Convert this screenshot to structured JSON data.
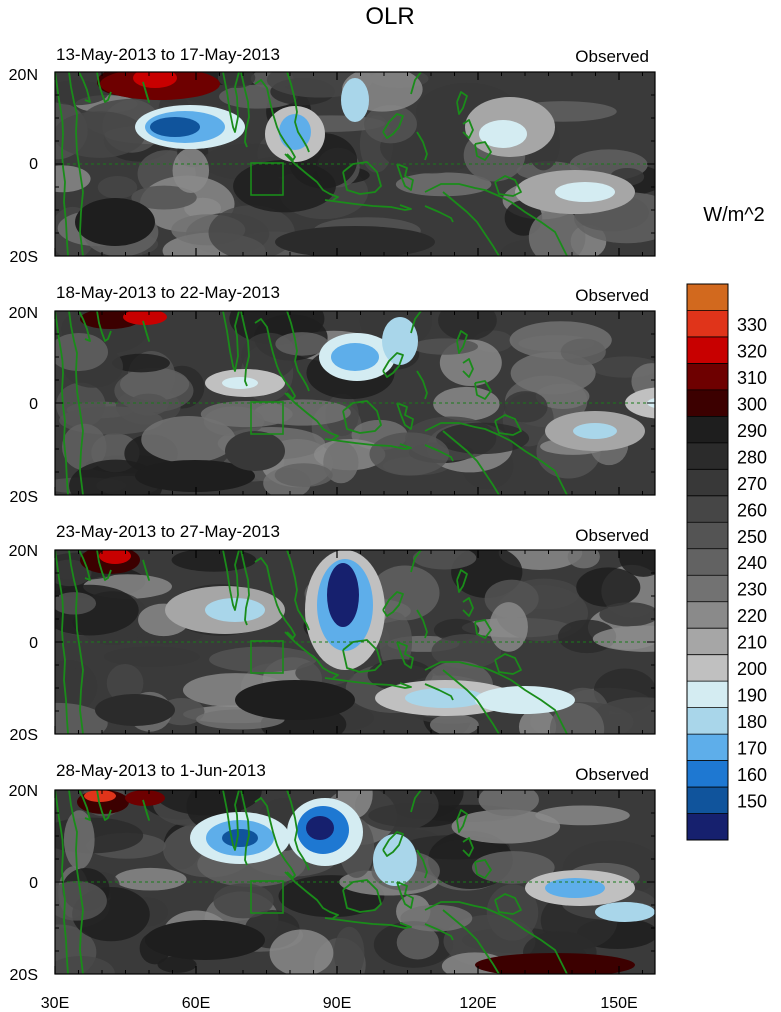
{
  "title": "OLR",
  "units": "W/m^2",
  "panels": [
    {
      "date_range": "13-May-2013 to 17-May-2013",
      "label": "Observed"
    },
    {
      "date_range": "18-May-2013 to 22-May-2013",
      "label": "Observed"
    },
    {
      "date_range": "23-May-2013 to 27-May-2013",
      "label": "Observed"
    },
    {
      "date_range": "28-May-2013 to 1-Jun-2013",
      "label": "Observed"
    }
  ],
  "lat_labels": [
    "20N",
    "0",
    "20S"
  ],
  "lon_labels": [
    "30E",
    "60E",
    "90E",
    "120E",
    "150E"
  ],
  "colorbar": {
    "levels": [
      "330",
      "320",
      "310",
      "300",
      "290",
      "280",
      "270",
      "260",
      "250",
      "240",
      "230",
      "220",
      "210",
      "200",
      "190",
      "180",
      "170",
      "160",
      "150"
    ],
    "colors": [
      "#d2691e",
      "#e0341a",
      "#c80000",
      "#6e0000",
      "#3c0000",
      "#1e1e1e",
      "#2b2b2b",
      "#383838",
      "#464646",
      "#545454",
      "#626262",
      "#727272",
      "#8a8a8a",
      "#a6a6a6",
      "#c0c0c0",
      "#d4ecf2",
      "#a9d6ea",
      "#5eaeea",
      "#1e78d2",
      "#10549c",
      "#16206e"
    ]
  },
  "chart_data": {
    "type": "heatmap",
    "title": "OLR",
    "colorbar_label": "W/m^2",
    "x_ticks": [
      "30E",
      "60E",
      "90E",
      "120E",
      "150E"
    ],
    "y_ticks": [
      "20N",
      "0",
      "20S"
    ],
    "lon_range": [
      30,
      160
    ],
    "lat_range": [
      -20,
      20
    ],
    "contour_levels": [
      150,
      160,
      170,
      180,
      190,
      200,
      210,
      220,
      230,
      240,
      250,
      260,
      270,
      280,
      290,
      300,
      310,
      320,
      330
    ],
    "panels": [
      {
        "period": "13-May-2013 to 17-May-2013",
        "label": "Observed"
      },
      {
        "period": "18-May-2013 to 22-May-2013",
        "label": "Observed"
      },
      {
        "period": "23-May-2013 to 27-May-2013",
        "label": "Observed"
      },
      {
        "period": "28-May-2013 to 1-Jun-2013",
        "label": "Observed"
      }
    ]
  }
}
